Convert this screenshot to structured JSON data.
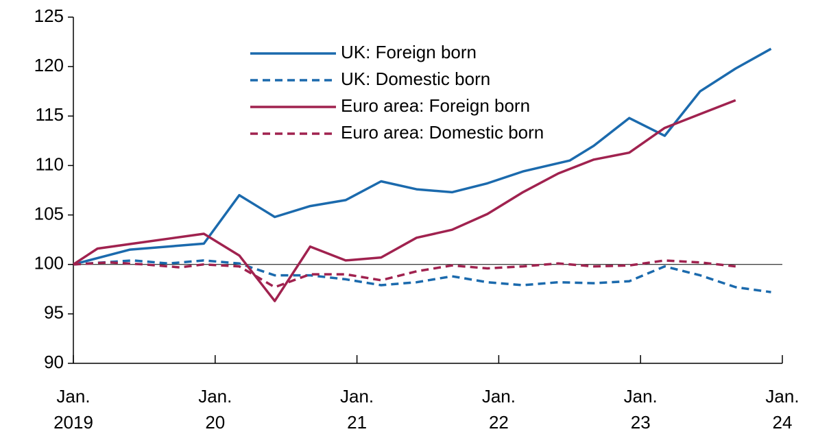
{
  "chart_data": {
    "type": "line",
    "xlim": [
      2019,
      2024
    ],
    "xticks": [
      {
        "value": 2019,
        "label": "Jan. 2019"
      },
      {
        "value": 2020,
        "label": "Jan. 20"
      },
      {
        "value": 2021,
        "label": "Jan. 21"
      },
      {
        "value": 2022,
        "label": "Jan. 22"
      },
      {
        "value": 2023,
        "label": "Jan. 23"
      },
      {
        "value": 2024,
        "label": "Jan. 24"
      }
    ],
    "ylim": [
      90,
      125
    ],
    "yticks": [
      90,
      95,
      100,
      105,
      110,
      115,
      120,
      125
    ],
    "reference_line": 100,
    "legend": "top-center",
    "series": [
      {
        "name": "UK: Foreign born",
        "color": "#1b6aad",
        "dashed": false,
        "x": [
          2019.0,
          2019.4,
          2019.92,
          2020.17,
          2020.42,
          2020.67,
          2020.92,
          2021.17,
          2021.42,
          2021.67,
          2021.92,
          2022.17,
          2022.5,
          2022.67,
          2022.92,
          2023.17,
          2023.42,
          2023.67,
          2023.92
        ],
        "values": [
          100.0,
          101.5,
          102.1,
          107.0,
          104.8,
          105.9,
          106.5,
          108.4,
          107.6,
          107.3,
          108.2,
          109.4,
          110.5,
          112.0,
          114.8,
          113.0,
          117.5,
          119.8,
          121.8
        ]
      },
      {
        "name": "UK: Domestic born",
        "color": "#1b6aad",
        "dashed": true,
        "x": [
          2019.0,
          2019.42,
          2019.67,
          2019.92,
          2020.17,
          2020.42,
          2020.67,
          2020.92,
          2021.17,
          2021.42,
          2021.67,
          2021.92,
          2022.17,
          2022.42,
          2022.67,
          2022.92,
          2023.17,
          2023.42,
          2023.67,
          2023.92
        ],
        "values": [
          100.0,
          100.4,
          100.1,
          100.4,
          100.1,
          98.9,
          98.9,
          98.5,
          97.9,
          98.2,
          98.8,
          98.2,
          97.9,
          98.2,
          98.1,
          98.3,
          99.8,
          98.9,
          97.7,
          97.2
        ]
      },
      {
        "name": "Euro area: Foreign born",
        "color": "#a0224f",
        "dashed": false,
        "x": [
          2019.0,
          2019.17,
          2019.42,
          2019.67,
          2019.92,
          2020.17,
          2020.42,
          2020.67,
          2020.92,
          2021.17,
          2021.42,
          2021.67,
          2021.92,
          2022.17,
          2022.42,
          2022.67,
          2022.92,
          2023.17,
          2023.42,
          2023.67
        ],
        "values": [
          100.0,
          101.6,
          102.1,
          102.6,
          103.1,
          100.9,
          96.3,
          101.8,
          100.4,
          100.7,
          102.7,
          103.5,
          105.1,
          107.3,
          109.2,
          110.6,
          111.3,
          113.8,
          115.2,
          116.6
        ]
      },
      {
        "name": "Euro area: Domestic born",
        "color": "#a0224f",
        "dashed": true,
        "x": [
          2019.0,
          2019.25,
          2019.5,
          2019.75,
          2019.92,
          2020.17,
          2020.42,
          2020.67,
          2020.92,
          2021.17,
          2021.42,
          2021.67,
          2021.92,
          2022.17,
          2022.42,
          2022.67,
          2022.92,
          2023.17,
          2023.42,
          2023.67
        ],
        "values": [
          100.0,
          100.2,
          100.0,
          99.7,
          100.0,
          99.8,
          97.7,
          99.0,
          99.0,
          98.4,
          99.3,
          99.9,
          99.6,
          99.8,
          100.1,
          99.8,
          99.9,
          100.4,
          100.2,
          99.8
        ]
      }
    ]
  }
}
